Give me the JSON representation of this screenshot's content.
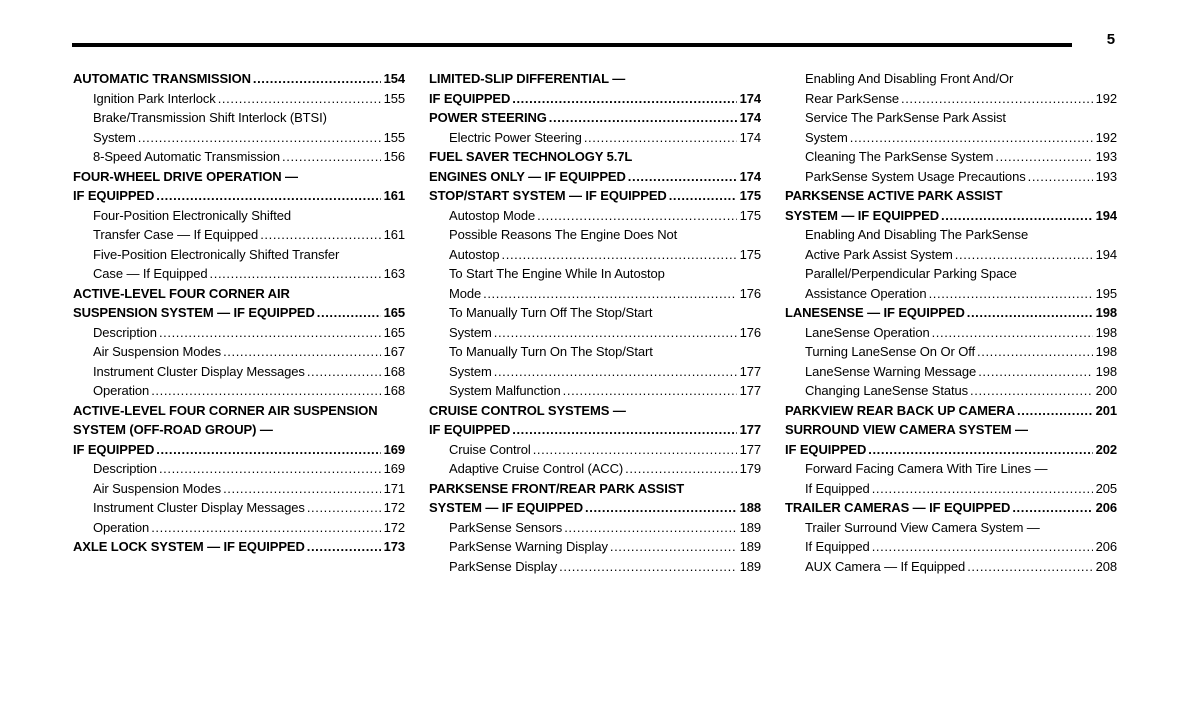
{
  "page": {
    "number": "5"
  },
  "colors": {
    "ink": "#000000",
    "background": "#ffffff"
  },
  "columns": [
    {
      "entries": [
        {
          "text": "AUTOMATIC TRANSMISSION",
          "page": "154",
          "bold": true,
          "indent": false
        },
        {
          "text": "Ignition Park Interlock",
          "page": "155",
          "bold": false,
          "indent": true
        },
        {
          "text": "Brake/Transmission Shift Interlock (BTSI)",
          "page": "",
          "bold": false,
          "indent": true
        },
        {
          "text": "System",
          "page": "155",
          "bold": false,
          "indent": true
        },
        {
          "text": "8-Speed Automatic Transmission",
          "page": "156",
          "bold": false,
          "indent": true
        },
        {
          "text": "FOUR-WHEEL DRIVE OPERATION —",
          "page": "",
          "bold": true,
          "indent": false
        },
        {
          "text": "IF EQUIPPED",
          "page": "161",
          "bold": true,
          "indent": false
        },
        {
          "text": "Four-Position Electronically Shifted",
          "page": "",
          "bold": false,
          "indent": true
        },
        {
          "text": "Transfer Case — If Equipped",
          "page": "161",
          "bold": false,
          "indent": true
        },
        {
          "text": "Five-Position Electronically Shifted Transfer",
          "page": "",
          "bold": false,
          "indent": true
        },
        {
          "text": "Case — If Equipped",
          "page": "163",
          "bold": false,
          "indent": true
        },
        {
          "text": "ACTIVE-LEVEL FOUR CORNER AIR",
          "page": "",
          "bold": true,
          "indent": false
        },
        {
          "text": "SUSPENSION SYSTEM — IF EQUIPPED",
          "page": "165",
          "bold": true,
          "indent": false
        },
        {
          "text": "Description",
          "page": "165",
          "bold": false,
          "indent": true
        },
        {
          "text": "Air Suspension Modes",
          "page": "167",
          "bold": false,
          "indent": true
        },
        {
          "text": "Instrument Cluster Display Messages",
          "page": "168",
          "bold": false,
          "indent": true
        },
        {
          "text": "Operation",
          "page": "168",
          "bold": false,
          "indent": true
        },
        {
          "text": "ACTIVE-LEVEL FOUR CORNER AIR SUSPENSION",
          "page": "",
          "bold": true,
          "indent": false
        },
        {
          "text": "SYSTEM (OFF-ROAD GROUP) —",
          "page": "",
          "bold": true,
          "indent": false
        },
        {
          "text": "IF EQUIPPED",
          "page": "169",
          "bold": true,
          "indent": false
        },
        {
          "text": "Description",
          "page": "169",
          "bold": false,
          "indent": true
        },
        {
          "text": "Air Suspension Modes",
          "page": "171",
          "bold": false,
          "indent": true
        },
        {
          "text": "Instrument Cluster Display Messages",
          "page": "172",
          "bold": false,
          "indent": true
        },
        {
          "text": "Operation",
          "page": "172",
          "bold": false,
          "indent": true
        },
        {
          "text": "AXLE LOCK SYSTEM — IF EQUIPPED",
          "page": "173",
          "bold": true,
          "indent": false
        }
      ]
    },
    {
      "entries": [
        {
          "text": "LIMITED-SLIP DIFFERENTIAL —",
          "page": "",
          "bold": true,
          "indent": false
        },
        {
          "text": "IF EQUIPPED",
          "page": "174",
          "bold": true,
          "indent": false
        },
        {
          "text": "POWER STEERING",
          "page": "174",
          "bold": true,
          "indent": false
        },
        {
          "text": "Electric Power Steering",
          "page": "174",
          "bold": false,
          "indent": true
        },
        {
          "text": "FUEL SAVER TECHNOLOGY 5.7L",
          "page": "",
          "bold": true,
          "indent": false
        },
        {
          "text": "ENGINES ONLY — IF EQUIPPED",
          "page": "174",
          "bold": true,
          "indent": false
        },
        {
          "text": "STOP/START SYSTEM — IF EQUIPPED",
          "page": "175",
          "bold": true,
          "indent": false
        },
        {
          "text": "Autostop Mode",
          "page": "175",
          "bold": false,
          "indent": true
        },
        {
          "text": "Possible Reasons The Engine Does Not",
          "page": "",
          "bold": false,
          "indent": true
        },
        {
          "text": "Autostop",
          "page": "175",
          "bold": false,
          "indent": true
        },
        {
          "text": "To Start The Engine While In Autostop",
          "page": "",
          "bold": false,
          "indent": true
        },
        {
          "text": "Mode",
          "page": "176",
          "bold": false,
          "indent": true
        },
        {
          "text": "To Manually Turn Off The Stop/Start",
          "page": "",
          "bold": false,
          "indent": true
        },
        {
          "text": "System",
          "page": "176",
          "bold": false,
          "indent": true
        },
        {
          "text": "To Manually Turn On The Stop/Start",
          "page": "",
          "bold": false,
          "indent": true
        },
        {
          "text": "System",
          "page": "177",
          "bold": false,
          "indent": true
        },
        {
          "text": "System Malfunction",
          "page": "177",
          "bold": false,
          "indent": true
        },
        {
          "text": "CRUISE CONTROL SYSTEMS —",
          "page": "",
          "bold": true,
          "indent": false
        },
        {
          "text": "IF EQUIPPED",
          "page": "177",
          "bold": true,
          "indent": false
        },
        {
          "text": "Cruise Control",
          "page": "177",
          "bold": false,
          "indent": true
        },
        {
          "text": "Adaptive Cruise Control (ACC)",
          "page": "179",
          "bold": false,
          "indent": true
        },
        {
          "text": "PARKSENSE FRONT/REAR PARK ASSIST",
          "page": "",
          "bold": true,
          "indent": false
        },
        {
          "text": "SYSTEM — IF EQUIPPED",
          "page": "188",
          "bold": true,
          "indent": false
        },
        {
          "text": "ParkSense Sensors",
          "page": "189",
          "bold": false,
          "indent": true
        },
        {
          "text": "ParkSense Warning Display",
          "page": "189",
          "bold": false,
          "indent": true
        },
        {
          "text": "ParkSense Display",
          "page": "189",
          "bold": false,
          "indent": true
        }
      ]
    },
    {
      "entries": [
        {
          "text": "Enabling And Disabling Front And/Or",
          "page": "",
          "bold": false,
          "indent": true
        },
        {
          "text": "Rear ParkSense",
          "page": "192",
          "bold": false,
          "indent": true
        },
        {
          "text": "Service The ParkSense Park Assist",
          "page": "",
          "bold": false,
          "indent": true
        },
        {
          "text": "System",
          "page": "192",
          "bold": false,
          "indent": true
        },
        {
          "text": "Cleaning The ParkSense System",
          "page": "193",
          "bold": false,
          "indent": true
        },
        {
          "text": "ParkSense System Usage Precautions",
          "page": "193",
          "bold": false,
          "indent": true
        },
        {
          "text": "PARKSENSE ACTIVE PARK ASSIST",
          "page": "",
          "bold": true,
          "indent": false
        },
        {
          "text": "SYSTEM — IF EQUIPPED",
          "page": "194",
          "bold": true,
          "indent": false
        },
        {
          "text": "Enabling And Disabling The ParkSense",
          "page": "",
          "bold": false,
          "indent": true
        },
        {
          "text": "Active Park Assist System",
          "page": "194",
          "bold": false,
          "indent": true
        },
        {
          "text": "Parallel/Perpendicular Parking Space",
          "page": "",
          "bold": false,
          "indent": true
        },
        {
          "text": "Assistance Operation",
          "page": "195",
          "bold": false,
          "indent": true
        },
        {
          "text": "LANESENSE — IF EQUIPPED",
          "page": "198",
          "bold": true,
          "indent": false
        },
        {
          "text": "LaneSense Operation",
          "page": "198",
          "bold": false,
          "indent": true
        },
        {
          "text": "Turning LaneSense On Or Off",
          "page": "198",
          "bold": false,
          "indent": true
        },
        {
          "text": "LaneSense Warning Message",
          "page": "198",
          "bold": false,
          "indent": true
        },
        {
          "text": "Changing LaneSense Status",
          "page": "200",
          "bold": false,
          "indent": true
        },
        {
          "text": "PARKVIEW REAR BACK UP CAMERA",
          "page": "201",
          "bold": true,
          "indent": false
        },
        {
          "text": "SURROUND VIEW CAMERA SYSTEM —",
          "page": "",
          "bold": true,
          "indent": false
        },
        {
          "text": "IF EQUIPPED",
          "page": "202",
          "bold": true,
          "indent": false
        },
        {
          "text": "Forward Facing Camera With Tire Lines —",
          "page": "",
          "bold": false,
          "indent": true
        },
        {
          "text": "If Equipped",
          "page": "205",
          "bold": false,
          "indent": true
        },
        {
          "text": "TRAILER CAMERAS — IF EQUIPPED",
          "page": "206",
          "bold": true,
          "indent": false
        },
        {
          "text": "Trailer Surround View Camera System —",
          "page": "",
          "bold": false,
          "indent": true
        },
        {
          "text": "If Equipped",
          "page": "206",
          "bold": false,
          "indent": true
        },
        {
          "text": "AUX Camera — If Equipped",
          "page": "208",
          "bold": false,
          "indent": true
        }
      ]
    }
  ]
}
